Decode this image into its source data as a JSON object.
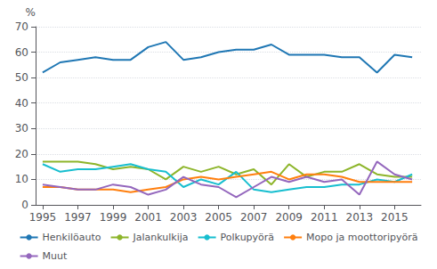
{
  "chart_data": {
    "type": "line",
    "ylabel": "%",
    "x": [
      1995,
      1996,
      1997,
      1998,
      1999,
      2000,
      2001,
      2002,
      2003,
      2004,
      2005,
      2006,
      2007,
      2008,
      2009,
      2010,
      2011,
      2012,
      2013,
      2014,
      2015,
      2016
    ],
    "series": [
      {
        "name": "Henkilöauto",
        "color": "#1f77b4",
        "values": [
          52,
          56,
          57,
          58,
          57,
          57,
          62,
          64,
          57,
          58,
          60,
          61,
          61,
          63,
          59,
          59,
          59,
          58,
          58,
          52,
          59,
          58
        ]
      },
      {
        "name": "Jalankulkija",
        "color": "#8db52a",
        "values": [
          17,
          17,
          17,
          16,
          14,
          15,
          14,
          10,
          15,
          13,
          15,
          12,
          14,
          8,
          16,
          11,
          13,
          13,
          16,
          12,
          11,
          11
        ]
      },
      {
        "name": "Polkupyörä",
        "color": "#17becf",
        "values": [
          16,
          13,
          14,
          14,
          15,
          16,
          14,
          13,
          7,
          10,
          8,
          13,
          6,
          5,
          6,
          7,
          7,
          8,
          8,
          10,
          9,
          12
        ]
      },
      {
        "name": "Mopo ja moottoripyörä",
        "color": "#ff7f0e",
        "values": [
          7,
          7,
          6,
          6,
          6,
          5,
          6,
          7,
          10,
          11,
          10,
          11,
          12,
          13,
          10,
          12,
          12,
          11,
          9,
          9,
          9,
          9
        ]
      },
      {
        "name": "Muut",
        "color": "#9467bd",
        "values": [
          8,
          7,
          6,
          6,
          8,
          7,
          4,
          6,
          11,
          8,
          7,
          3,
          7,
          11,
          9,
          11,
          9,
          10,
          4,
          17,
          12,
          10
        ]
      }
    ],
    "xlim": [
      1994.6,
      2016.5
    ],
    "xticks": [
      1995,
      1997,
      1999,
      2001,
      2003,
      2005,
      2007,
      2009,
      2011,
      2013,
      2015
    ],
    "ylim": [
      0,
      70
    ],
    "yticks": [
      0,
      10,
      20,
      30,
      40,
      50,
      60,
      70
    ],
    "grid": true,
    "legend": "bottom"
  }
}
